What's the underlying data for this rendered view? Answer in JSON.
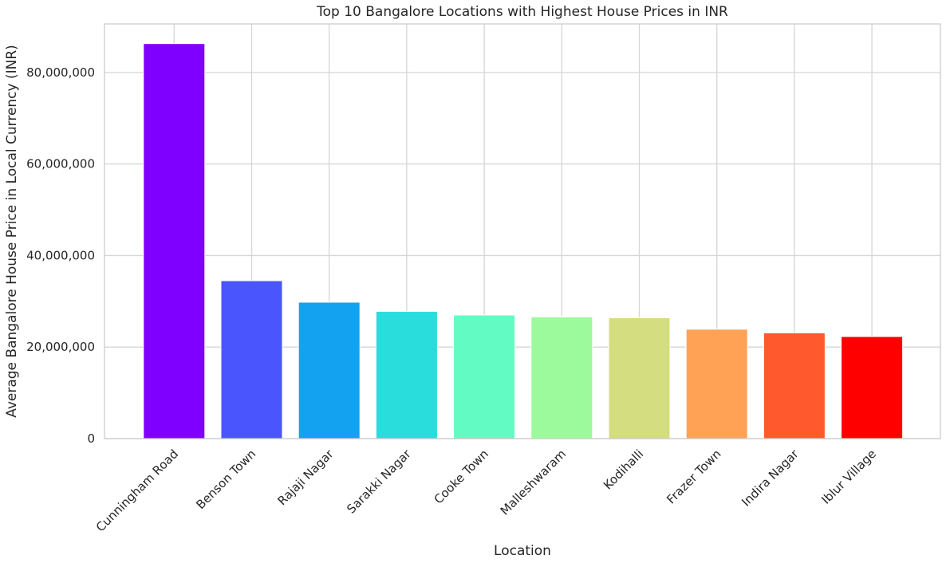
{
  "chart_data": {
    "type": "bar",
    "title": "Top 10 Bangalore Locations with Highest House Prices in INR",
    "xlabel": "Location",
    "ylabel": "Average Bangalore House Price in Local Currency (INR)",
    "categories": [
      "Cunningham Road",
      "Benson Town",
      "Rajaji Nagar",
      "Sarakki Nagar",
      "Cooke Town",
      "Malleshwaram",
      "Kodihalli",
      "Frazer Town",
      "Indira Nagar",
      "Iblur Village"
    ],
    "values": [
      86300000,
      34500000,
      29800000,
      27800000,
      27000000,
      26600000,
      26400000,
      23900000,
      23100000,
      22300000
    ],
    "colors": [
      "#8000ff",
      "#4a55fd",
      "#12a2f0",
      "#2adddd",
      "#62fbc4",
      "#9cfa9c",
      "#d4dd80",
      "#ffa256",
      "#ff592d",
      "#ff0000"
    ],
    "yticks": [
      0,
      20000000,
      40000000,
      60000000,
      80000000
    ],
    "ytick_labels": [
      "0",
      "20,000,000",
      "40,000,000",
      "60,000,000",
      "80,000,000"
    ],
    "ylim": [
      0,
      90600000
    ],
    "grid": true
  }
}
